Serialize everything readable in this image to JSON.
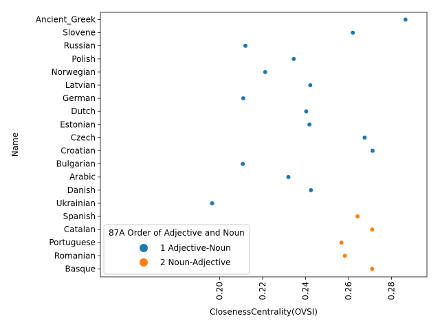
{
  "chart_data": {
    "type": "scatter",
    "title": "",
    "xlabel": "ClosenessCentrality(OVSI)",
    "ylabel": "Name",
    "xlim": [
      0.1445,
      0.2965
    ],
    "xticks": [
      0.2,
      0.22,
      0.24,
      0.26,
      0.28
    ],
    "xtick_labels": [
      "0.20",
      "0.22",
      "0.24",
      "0.26",
      "0.28"
    ],
    "xtick_rotation": -90,
    "categories": [
      "Ancient_Greek",
      "Slovene",
      "Russian",
      "Polish",
      "Norwegian",
      "Latvian",
      "German",
      "Dutch",
      "Estonian",
      "Czech",
      "Croatian",
      "Bulgarian",
      "Arabic",
      "Danish",
      "Ukrainian",
      "Spanish",
      "Catalan",
      "Portuguese",
      "Romanian",
      "Basque"
    ],
    "legend": {
      "title": "87A Order of Adjective and Noun",
      "placement": "lower-left"
    },
    "series": [
      {
        "name": "1 Adjective-Noun",
        "color": "#1f77b4",
        "points": [
          {
            "x": 0.2865,
            "y": "Ancient_Greek"
          },
          {
            "x": 0.262,
            "y": "Slovene"
          },
          {
            "x": 0.212,
            "y": "Russian"
          },
          {
            "x": 0.2345,
            "y": "Polish"
          },
          {
            "x": 0.2212,
            "y": "Norwegian"
          },
          {
            "x": 0.2422,
            "y": "Latvian"
          },
          {
            "x": 0.211,
            "y": "German"
          },
          {
            "x": 0.2403,
            "y": "Dutch"
          },
          {
            "x": 0.2418,
            "y": "Estonian"
          },
          {
            "x": 0.2675,
            "y": "Czech"
          },
          {
            "x": 0.2712,
            "y": "Croatian"
          },
          {
            "x": 0.2108,
            "y": "Bulgarian"
          },
          {
            "x": 0.232,
            "y": "Arabic"
          },
          {
            "x": 0.2425,
            "y": "Danish"
          },
          {
            "x": 0.1965,
            "y": "Ukrainian"
          }
        ]
      },
      {
        "name": "2 Noun-Adjective",
        "color": "#ff7f0e",
        "points": [
          {
            "x": 0.2642,
            "y": "Spanish"
          },
          {
            "x": 0.271,
            "y": "Catalan"
          },
          {
            "x": 0.2567,
            "y": "Portuguese"
          },
          {
            "x": 0.2583,
            "y": "Romanian"
          },
          {
            "x": 0.271,
            "y": "Basque"
          }
        ]
      }
    ]
  }
}
